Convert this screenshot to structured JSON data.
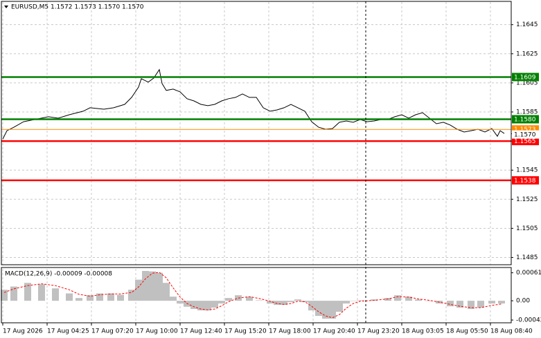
{
  "chart_data": [
    {
      "type": "line",
      "title": "EURUSD,M5 1.1572 1.1573 1.1570 1.1570",
      "color": "#000000",
      "grid": true,
      "x": [
        1,
        4,
        9,
        16,
        24,
        34,
        41,
        49,
        59,
        64,
        74,
        81,
        89,
        94,
        99,
        101,
        106,
        110,
        114,
        116,
        119,
        124,
        129,
        134,
        139,
        144,
        149,
        154,
        159,
        164,
        169,
        174,
        179,
        184,
        189,
        194,
        199,
        204,
        209,
        214,
        219,
        224,
        229,
        234,
        239,
        244,
        249,
        254,
        259,
        264,
        269,
        274,
        279,
        284,
        289,
        294,
        299,
        304,
        309,
        314,
        319,
        324,
        329,
        334,
        339,
        344,
        349,
        354,
        358,
        360,
        363
      ],
      "values": [
        1.15664,
        1.15721,
        1.15745,
        1.15783,
        1.15798,
        1.15817,
        1.15807,
        1.15831,
        1.15855,
        1.15879,
        1.15869,
        1.15879,
        1.15902,
        1.1595,
        1.16021,
        1.16079,
        1.16055,
        1.16083,
        1.16141,
        1.16045,
        1.15998,
        1.16007,
        1.15988,
        1.15941,
        1.15926,
        1.15902,
        1.15893,
        1.15902,
        1.15926,
        1.15941,
        1.1595,
        1.15974,
        1.1595,
        1.1595,
        1.15879,
        1.15855,
        1.15864,
        1.15879,
        1.15902,
        1.15879,
        1.15855,
        1.15783,
        1.15745,
        1.15731,
        1.15736,
        1.15779,
        1.15788,
        1.15779,
        1.15798,
        1.15783,
        1.15788,
        1.15798,
        1.15798,
        1.15817,
        1.15831,
        1.15807,
        1.15831,
        1.15845,
        1.15807,
        1.15769,
        1.15779,
        1.1576,
        1.15731,
        1.15712,
        1.15721,
        1.15731,
        1.15712,
        1.15736,
        1.15683,
        1.15721,
        1.15702
      ],
      "xlim": [
        0,
        368
      ],
      "ylim": [
        1.148,
        1.1661
      ],
      "yticks": [
        1.1645,
        1.1625,
        1.1605,
        1.1585,
        1.1565,
        1.1545,
        1.1525,
        1.1505,
        1.1485
      ],
      "levels": [
        {
          "value": 1.1609,
          "color": "#008000"
        },
        {
          "value": 1.158,
          "label": "1.1580",
          "color": "#008000"
        },
        {
          "value": 1.1565,
          "color": "#ff0000"
        },
        {
          "value": 1.1538,
          "color": "#ff0000"
        }
      ],
      "ask": {
        "value": 1.1573,
        "color": "#ff8c00"
      },
      "last": {
        "value": 1.157,
        "label": "1.1570"
      }
    },
    {
      "type": "bar",
      "title": "MACD(12,26,9) -0.00009 -0.00008",
      "color": "#c0c0c0",
      "signal_color": "#ff0000",
      "x": [
        2,
        9,
        19,
        29,
        39,
        49,
        56,
        64,
        71,
        79,
        86,
        94,
        99,
        104,
        109,
        114,
        119,
        124,
        129,
        134,
        139,
        144,
        149,
        154,
        159,
        164,
        171,
        179,
        186,
        194,
        199,
        204,
        209,
        214,
        219,
        224,
        229,
        234,
        239,
        244,
        249,
        254,
        259,
        269,
        279,
        286,
        294,
        301,
        309,
        316,
        324,
        331,
        339,
        346,
        354,
        361
      ],
      "values": [
        0.00024,
        0.00031,
        0.00039,
        0.00036,
        0.00027,
        0.00016,
        6e-05,
        0.00012,
        0.00016,
        0.00016,
        0.00013,
        0.00024,
        0.00046,
        0.00065,
        0.00064,
        0.00061,
        0.00039,
        9e-05,
        -6e-05,
        -0.00013,
        -0.00018,
        -0.00021,
        -0.00021,
        -0.00015,
        -6e-05,
        6e-05,
        0.00012,
        9e-05,
        1e-05,
        -6e-05,
        -9e-05,
        -9e-05,
        -3e-05,
        3e-05,
        -3e-05,
        -0.00021,
        -0.00033,
        -0.00039,
        -0.00039,
        -0.00024,
        -6e-05,
        0,
        1e-05,
        3e-05,
        6e-05,
        0.00012,
        9e-05,
        3e-05,
        0,
        -6e-05,
        -0.00012,
        -0.00015,
        -0.00018,
        -0.00015,
        -6e-05,
        -6e-05
      ],
      "signal": [
        0.00018,
        0.00026,
        0.00033,
        0.00037,
        0.00033,
        0.00024,
        0.00014,
        0.0001,
        0.00013,
        0.00015,
        0.00015,
        0.00018,
        0.0003,
        0.00048,
        0.0006,
        0.00062,
        0.0005,
        0.00028,
        8e-05,
        -6e-05,
        -0.00013,
        -0.00018,
        -0.0002,
        -0.00018,
        -0.00011,
        -2e-05,
        6e-05,
        9e-05,
        5e-05,
        -1e-05,
        -6e-05,
        -8e-05,
        -6e-05,
        -1e-05,
        -2e-05,
        -0.00012,
        -0.00024,
        -0.00033,
        -0.00037,
        -0.0003,
        -0.00016,
        -6e-05,
        -1e-05,
        1e-05,
        4e-05,
        9e-05,
        8e-05,
        4e-05,
        1e-05,
        -3e-05,
        -8e-05,
        -0.00012,
        -0.00015,
        -0.00015,
        -0.0001,
        -7e-05
      ],
      "xlim": [
        0,
        368
      ],
      "ylim": [
        -0.00048,
        0.00071
      ],
      "yticks": [
        0.00061,
        {
          "value": 0,
          "label": "0.00"
        },
        -0.00042
      ],
      "xticks": [
        {
          "value": 1,
          "label": "17 Aug 2026"
        },
        {
          "value": 33,
          "label": "17 Aug 04:25"
        },
        {
          "value": 65,
          "label": "17 Aug 07:20"
        },
        {
          "value": 97,
          "label": "17 Aug 10:00"
        },
        {
          "value": 129,
          "label": "17 Aug 12:40"
        },
        {
          "value": 161,
          "label": "17 Aug 15:20"
        },
        {
          "value": 193,
          "label": "17 Aug 18:00"
        },
        {
          "value": 225,
          "label": "17 Aug 20:40"
        },
        {
          "value": 257,
          "label": "17 Aug 23:20"
        },
        {
          "value": 289,
          "label": "18 Aug 03:05"
        },
        {
          "value": 321,
          "label": "18 Aug 05:50"
        },
        {
          "value": 353,
          "label": "18 Aug 08:40"
        }
      ]
    }
  ]
}
